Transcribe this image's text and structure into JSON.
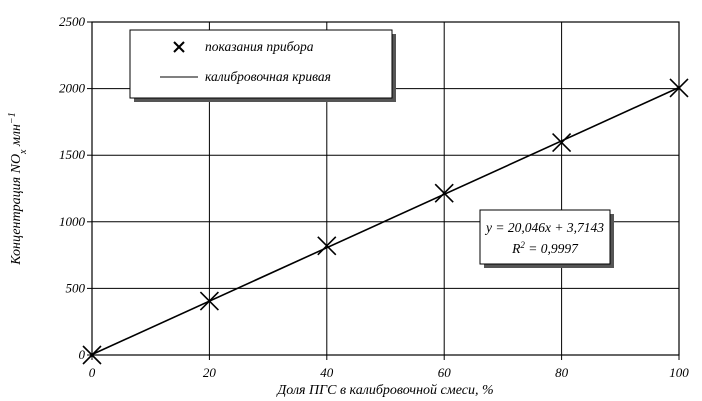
{
  "chart_data": {
    "type": "scatter",
    "x": [
      0,
      20,
      40,
      60,
      80,
      100
    ],
    "series": [
      {
        "name": "показания прибора",
        "kind": "markers",
        "marker": "x",
        "values": [
          0,
          405,
          820,
          1215,
          1595,
          2005
        ]
      },
      {
        "name": "калибровочная кривая",
        "kind": "line",
        "slope": 20.046,
        "intercept": 3.7143
      }
    ],
    "xlabel": "Доля ПГС в калибровочной смеси, %",
    "ylabel": {
      "main": "Концентрация NO",
      "sub": "x",
      "unit": " млн",
      "sup": "−1"
    },
    "xlim": [
      0,
      100
    ],
    "ylim": [
      0,
      2500
    ],
    "xticks": [
      0,
      20,
      40,
      60,
      80,
      100
    ],
    "yticks": [
      0,
      500,
      1000,
      1500,
      2000,
      2500
    ],
    "xtick_labels": [
      "0",
      "20",
      "40",
      "60",
      "80",
      "100"
    ],
    "ytick_labels": [
      "0",
      "500",
      "1000",
      "1500",
      "2000",
      "2500"
    ],
    "grid": true,
    "legend_position": "top-left",
    "annotation": {
      "equation": "y = 20,046x + 3,7143",
      "r2_main": "R",
      "r2_sup": "2",
      "r2_value": " = 0,9997"
    },
    "colors": {
      "axis": "#000000",
      "grid": "#000000",
      "series": "#000000"
    }
  }
}
